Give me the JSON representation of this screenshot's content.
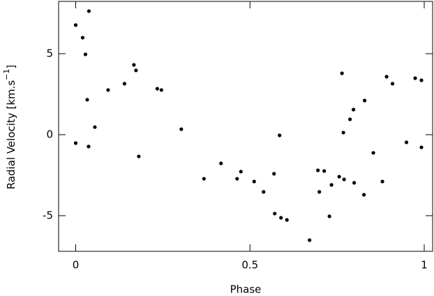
{
  "chart_data": {
    "type": "scatter",
    "xlabel": "Phase",
    "ylabel": [
      "Radial Velocity [km.s",
      "−1",
      "]"
    ],
    "color": "#000000",
    "xlim": [
      -0.049,
      1.024
    ],
    "ylim": [
      -7.2,
      8.23
    ],
    "xticks": [
      0,
      0.5,
      1
    ],
    "yticks": [
      -5,
      0,
      5
    ],
    "x": [
      0.0,
      0.0,
      0.02,
      0.028,
      0.038,
      0.033,
      0.037,
      0.055,
      0.093,
      0.14,
      0.167,
      0.173,
      0.181,
      0.234,
      0.246,
      0.303,
      0.368,
      0.417,
      0.463,
      0.474,
      0.512,
      0.539,
      0.569,
      0.571,
      0.585,
      0.589,
      0.606,
      0.671,
      0.695,
      0.699,
      0.713,
      0.728,
      0.734,
      0.756,
      0.764,
      0.768,
      0.77,
      0.787,
      0.797,
      0.799,
      0.827,
      0.829,
      0.854,
      0.88,
      0.892,
      0.909,
      0.949,
      0.974,
      0.992,
      0.992
    ],
    "values": [
      6.77,
      -0.52,
      5.99,
      4.96,
      7.63,
      2.16,
      -0.73,
      0.47,
      2.76,
      3.15,
      4.31,
      3.97,
      -1.34,
      2.84,
      2.76,
      0.34,
      -2.72,
      -1.77,
      -2.72,
      -2.28,
      -2.89,
      -3.53,
      -2.41,
      -4.87,
      -0.04,
      -5.13,
      -5.26,
      -6.51,
      -2.2,
      -3.53,
      -2.24,
      -5.04,
      -3.1,
      -2.59,
      3.79,
      0.13,
      -2.76,
      0.95,
      1.55,
      -2.97,
      -3.71,
      2.11,
      -1.12,
      -2.89,
      3.58,
      3.15,
      -0.47,
      3.49,
      3.36,
      -0.78
    ]
  }
}
